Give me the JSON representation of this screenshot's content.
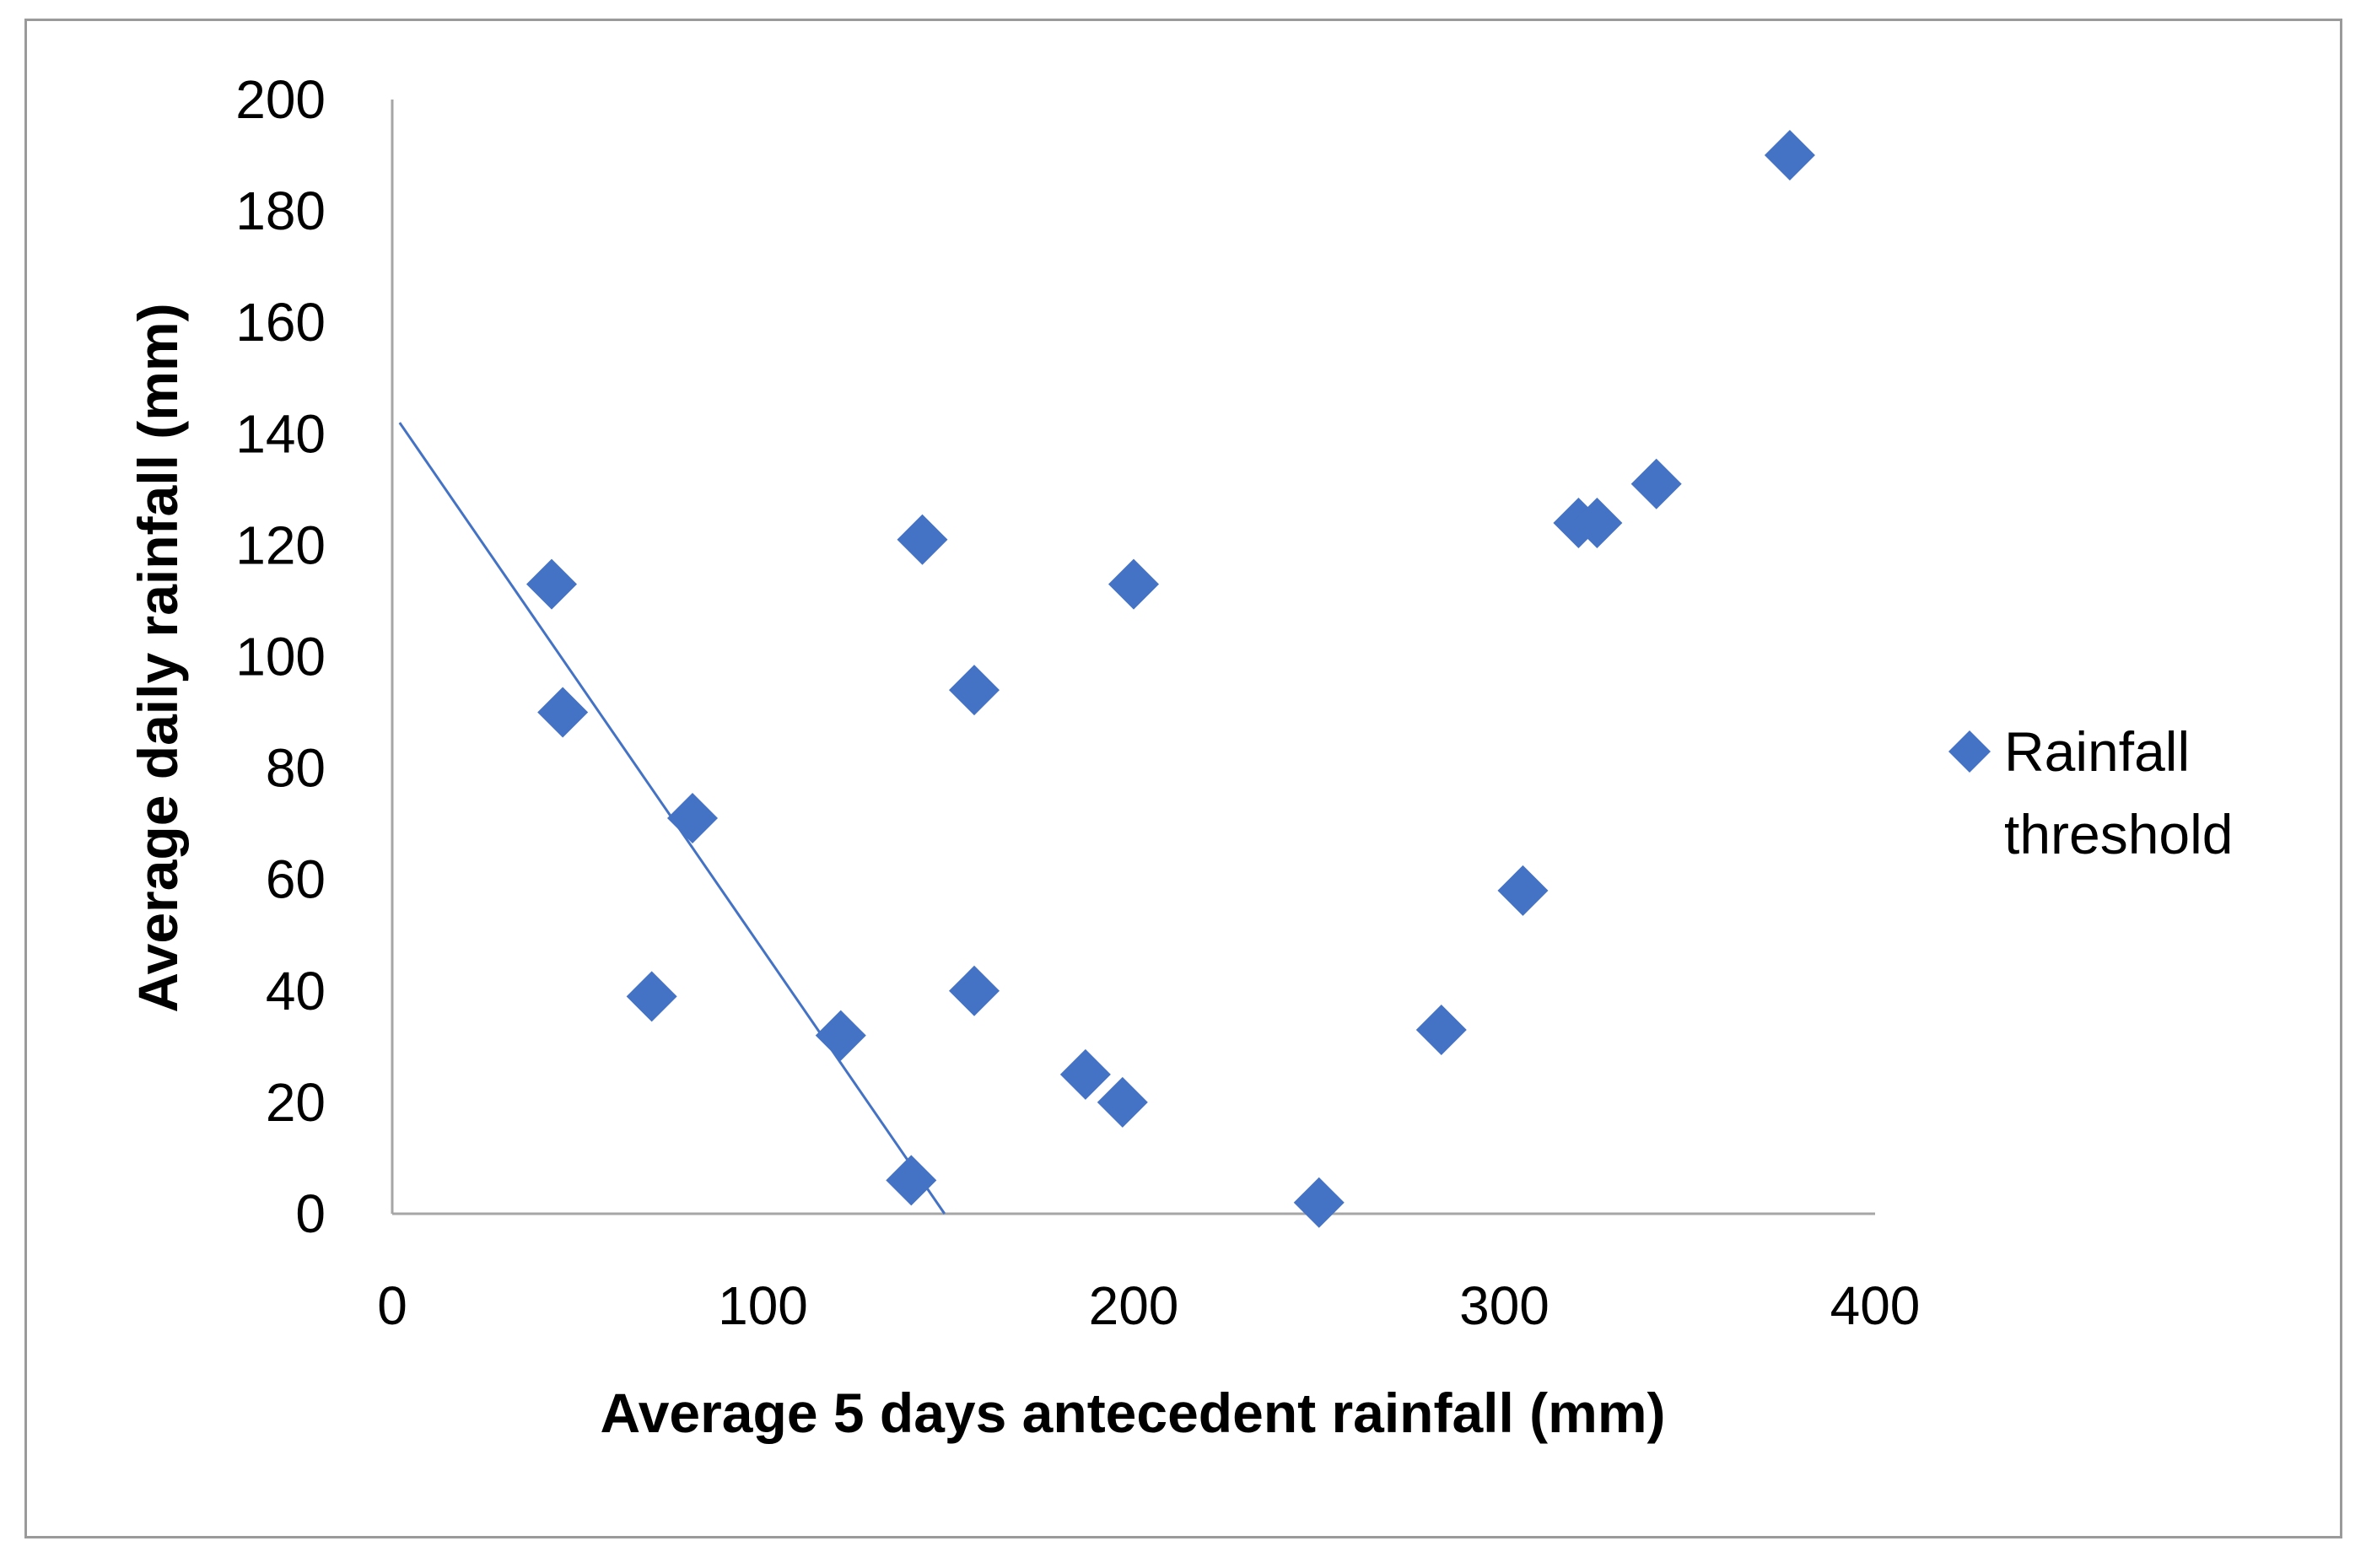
{
  "chart_data": {
    "type": "scatter",
    "title": "",
    "xlabel": "Average 5 days antecedent rainfall (mm)",
    "ylabel": "Average daily rainfall (mm)",
    "xlim": [
      0,
      400
    ],
    "ylim": [
      0,
      200
    ],
    "xticks": [
      0,
      100,
      200,
      300,
      400
    ],
    "yticks": [
      0,
      20,
      40,
      60,
      80,
      100,
      120,
      140,
      160,
      180,
      200
    ],
    "grid": false,
    "legend_position": "right",
    "series": [
      {
        "name": "Rainfall threshold",
        "marker": "diamond",
        "color": "#4472C4",
        "points": [
          {
            "x": 43,
            "y": 113
          },
          {
            "x": 46,
            "y": 90
          },
          {
            "x": 70,
            "y": 39
          },
          {
            "x": 81,
            "y": 71
          },
          {
            "x": 121,
            "y": 32
          },
          {
            "x": 140,
            "y": 6
          },
          {
            "x": 143,
            "y": 121
          },
          {
            "x": 157,
            "y": 94
          },
          {
            "x": 157,
            "y": 40
          },
          {
            "x": 187,
            "y": 25
          },
          {
            "x": 197,
            "y": 20
          },
          {
            "x": 200,
            "y": 113
          },
          {
            "x": 250,
            "y": 2
          },
          {
            "x": 283,
            "y": 33
          },
          {
            "x": 305,
            "y": 58
          },
          {
            "x": 320,
            "y": 124
          },
          {
            "x": 325,
            "y": 124
          },
          {
            "x": 341,
            "y": 131
          },
          {
            "x": 377,
            "y": 190
          }
        ]
      }
    ],
    "lines": [
      {
        "name": "threshold-line",
        "color": "#4472C4",
        "from": {
          "x": 2,
          "y": 142
        },
        "to": {
          "x": 149,
          "y": 0
        }
      }
    ],
    "legend": [
      {
        "label_lines": [
          "Rainfall",
          "threshold"
        ],
        "color": "#4472C4",
        "marker": "diamond"
      }
    ]
  }
}
